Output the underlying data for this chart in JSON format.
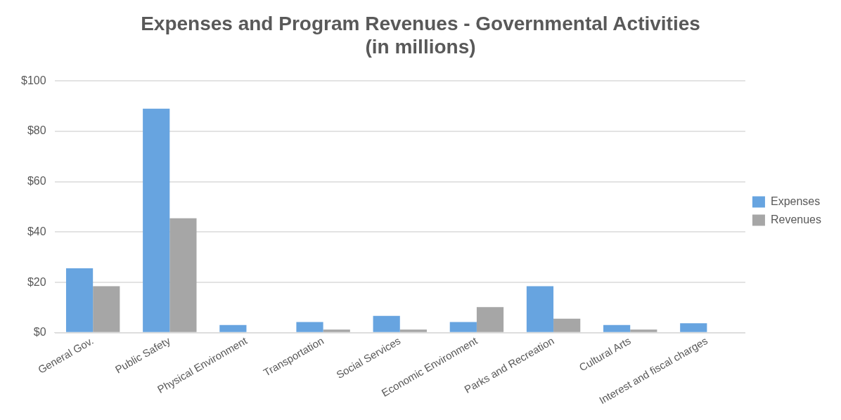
{
  "chart_data": {
    "type": "bar",
    "title": "Expenses and Program Revenues - Governmental Activities\n(in millions)",
    "categories": [
      "General Gov.",
      "Public Safety",
      "Physical Environment",
      "Transportation",
      "Social Services",
      "Economic Environment",
      "Parks and Recreation",
      "Cultural Arts",
      "Interest and fiscal charges"
    ],
    "series": [
      {
        "name": "Expenses",
        "color": "#67a4e0",
        "values": [
          25.6,
          89,
          3.1,
          4.3,
          6.7,
          4.3,
          18.5,
          3.1,
          3.8
        ]
      },
      {
        "name": "Revenues",
        "color": "#a6a6a6",
        "values": [
          18.5,
          45.5,
          null,
          1.3,
          1.3,
          10.2,
          5.6,
          1.3,
          null
        ]
      }
    ],
    "ylim": [
      0,
      100
    ],
    "yticks": [
      {
        "value": 0,
        "label": "$0"
      },
      {
        "value": 20,
        "label": "$20"
      },
      {
        "value": 40,
        "label": "$40"
      },
      {
        "value": 60,
        "label": "$60"
      },
      {
        "value": 80,
        "label": "$80"
      },
      {
        "value": 100,
        "label": "$100"
      }
    ],
    "grid": "y",
    "legend": "right"
  }
}
